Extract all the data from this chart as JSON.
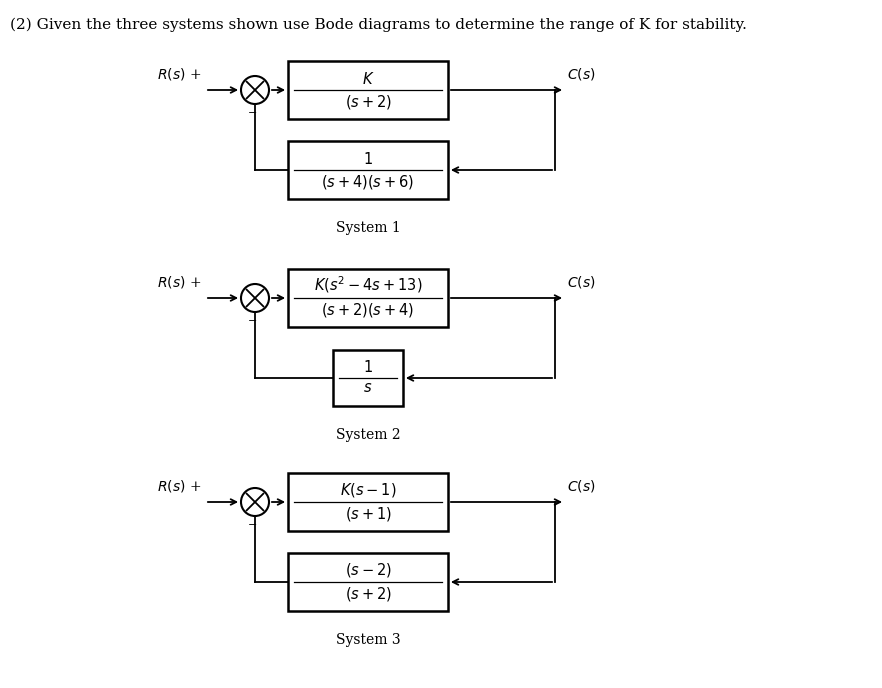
{
  "title": "(2) Given the three systems shown use Bode diagrams to determine the range of K for stability.",
  "background_color": "#ffffff",
  "text_color": "#000000",
  "systems": [
    {
      "name": "System 1",
      "fwd_num": "$K$",
      "fwd_den": "$(s+2)$",
      "fb_num": "$1$",
      "fb_den": "$(s+4)(s+6)$",
      "fb_small": false
    },
    {
      "name": "System 2",
      "fwd_num": "$K(s^2-4s+13)$",
      "fwd_den": "$(s+2)(s+4)$",
      "fb_num": "$1$",
      "fb_den": "$s$",
      "fb_small": true
    },
    {
      "name": "System 3",
      "fwd_num": "$K(s-1)$",
      "fwd_den": "$(s+1)$",
      "fb_num": "$(s-2)$",
      "fb_den": "$(s+2)$",
      "fb_small": false
    }
  ],
  "font_size_title": 11.0,
  "font_size_label": 10,
  "font_size_box": 10.5
}
